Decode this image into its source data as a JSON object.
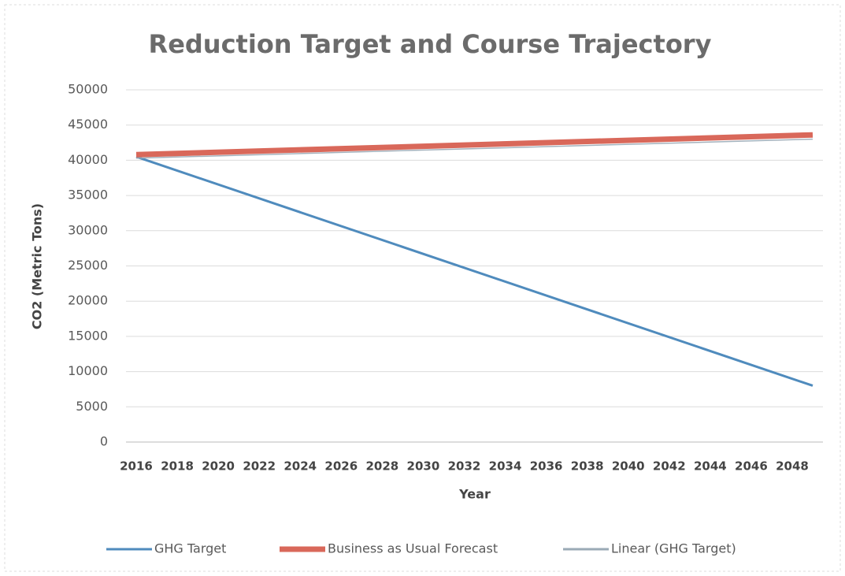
{
  "chart_data": {
    "type": "line",
    "title": "Reduction Target and Course Trajectory",
    "x_label": "Year",
    "y_label": "CO2 (Metric Tons)",
    "x": [
      2016,
      2049
    ],
    "series": [
      {
        "name": "GHG Target",
        "color": "#4f8bbd",
        "values": [
          40500,
          8000
        ]
      },
      {
        "name": "Business as Usual Forecast",
        "color": "#d9685a",
        "values": [
          40800,
          43600
        ]
      },
      {
        "name": "Linear (GHG Target)",
        "color": "#9aaab6",
        "values": [
          40300,
          43000
        ]
      }
    ],
    "xlim": [
      2015.5,
      2049.5
    ],
    "xticks": [
      2016,
      2018,
      2020,
      2022,
      2024,
      2026,
      2028,
      2030,
      2032,
      2034,
      2036,
      2038,
      2040,
      2042,
      2044,
      2046,
      2048
    ],
    "ylim": [
      0,
      50000
    ],
    "yticks": [
      0,
      5000,
      10000,
      15000,
      20000,
      25000,
      30000,
      35000,
      40000,
      45000,
      50000
    ],
    "grid": true,
    "legend": "bottom"
  }
}
